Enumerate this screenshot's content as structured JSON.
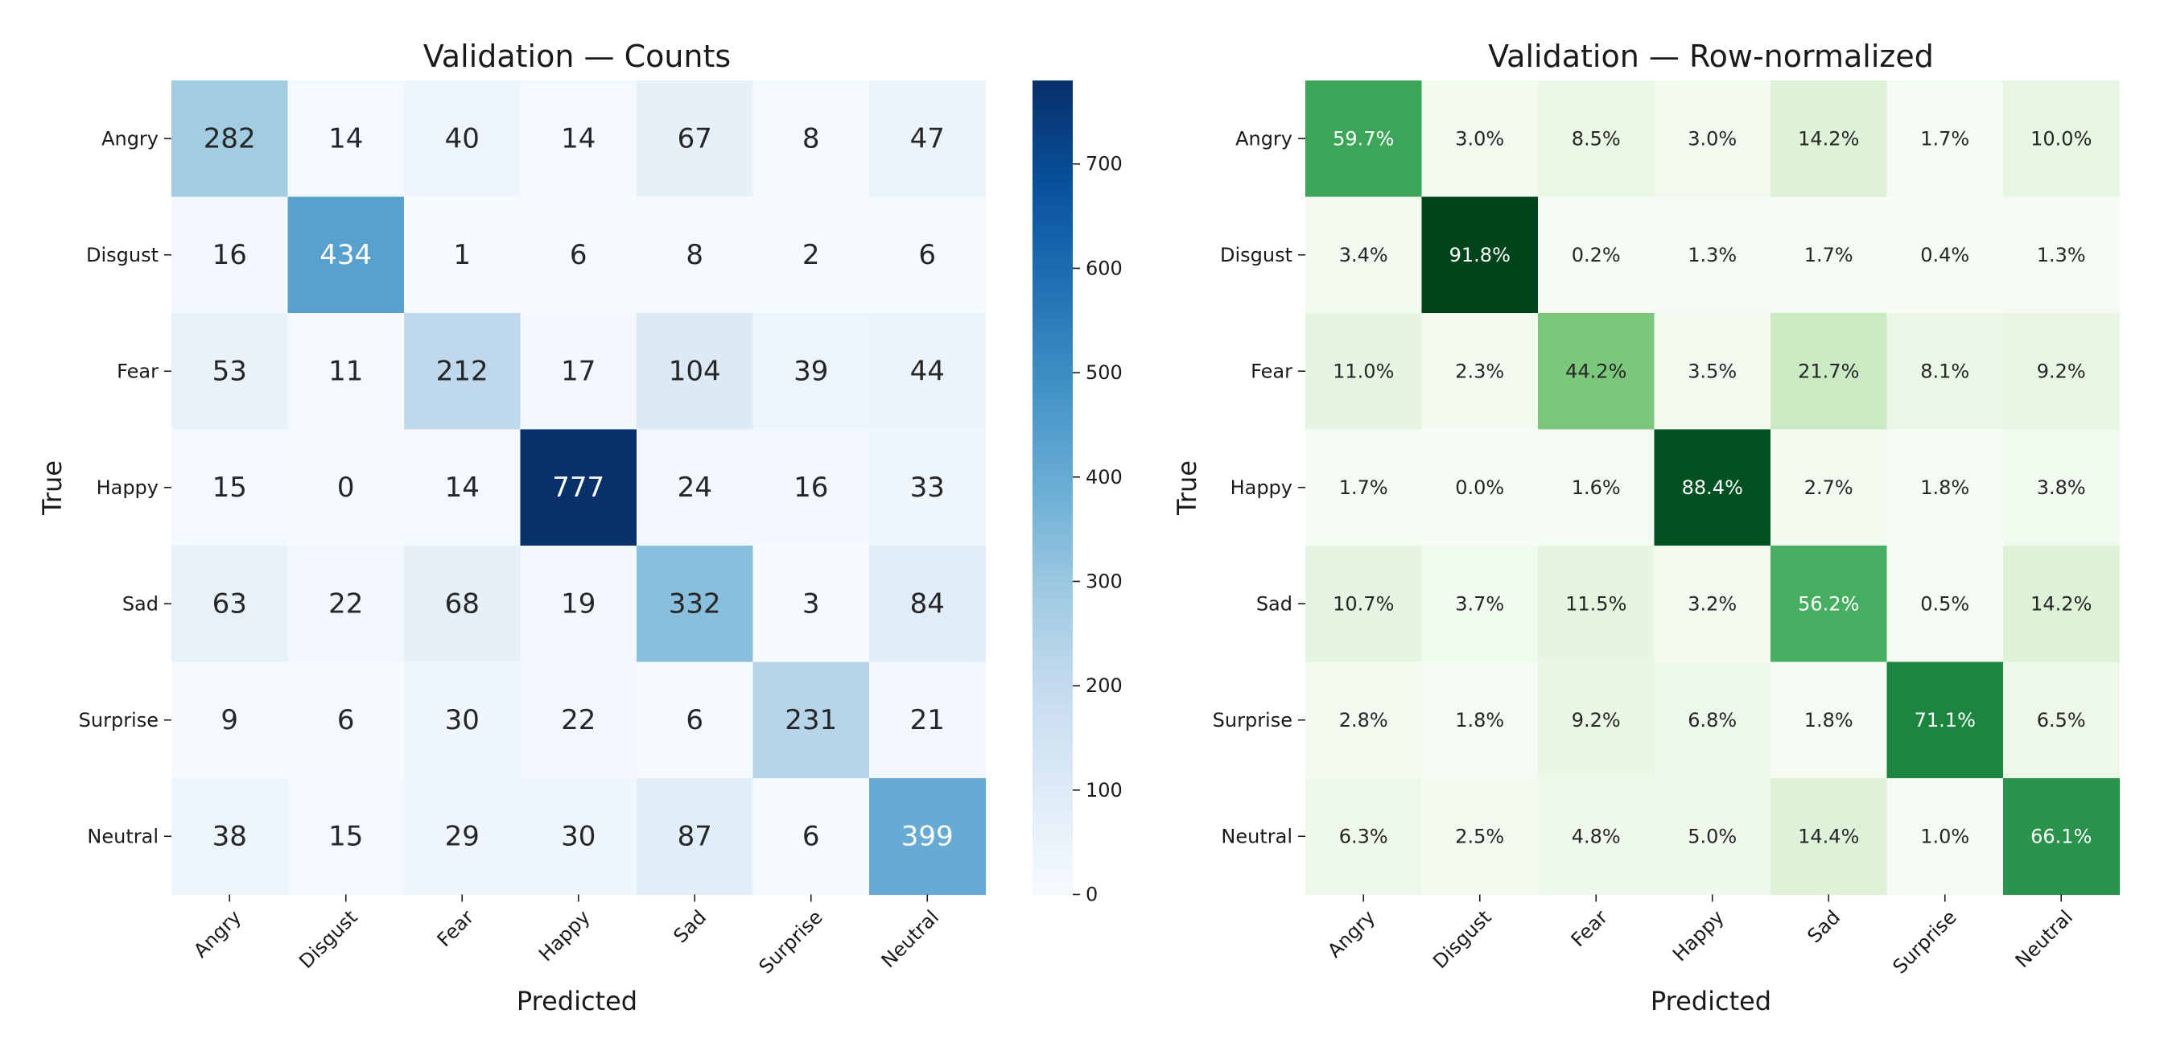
{
  "chart_data": [
    {
      "type": "heatmap",
      "title": "Validation — Counts",
      "xlabel": "Predicted",
      "ylabel": "True",
      "categories": [
        "Angry",
        "Disgust",
        "Fear",
        "Happy",
        "Sad",
        "Surprise",
        "Neutral"
      ],
      "rows": [
        "Angry",
        "Disgust",
        "Fear",
        "Happy",
        "Sad",
        "Surprise",
        "Neutral"
      ],
      "cells": [
        [
          "282",
          "14",
          "40",
          "14",
          "67",
          "8",
          "47"
        ],
        [
          "16",
          "434",
          "1",
          "6",
          "8",
          "2",
          "6"
        ],
        [
          "53",
          "11",
          "212",
          "17",
          "104",
          "39",
          "44"
        ],
        [
          "15",
          "0",
          "14",
          "777",
          "24",
          "16",
          "33"
        ],
        [
          "63",
          "22",
          "68",
          "19",
          "332",
          "3",
          "84"
        ],
        [
          "9",
          "6",
          "30",
          "22",
          "6",
          "231",
          "21"
        ],
        [
          "38",
          "15",
          "29",
          "30",
          "87",
          "6",
          "399"
        ]
      ],
      "values": [
        [
          282,
          14,
          40,
          14,
          67,
          8,
          47
        ],
        [
          16,
          434,
          1,
          6,
          8,
          2,
          6
        ],
        [
          53,
          11,
          212,
          17,
          104,
          39,
          44
        ],
        [
          15,
          0,
          14,
          777,
          24,
          16,
          33
        ],
        [
          63,
          22,
          68,
          19,
          332,
          3,
          84
        ],
        [
          9,
          6,
          30,
          22,
          6,
          231,
          21
        ],
        [
          38,
          15,
          29,
          30,
          87,
          6,
          399
        ]
      ],
      "colormap": "Blues",
      "vmin": 0,
      "vmax": 777,
      "colorbar": {
        "ticks": [
          "0",
          "100",
          "200",
          "300",
          "400",
          "500",
          "600",
          "700"
        ],
        "tick_values": [
          0,
          100,
          200,
          300,
          400,
          500,
          600,
          700
        ]
      }
    },
    {
      "type": "heatmap",
      "title": "Validation — Row-normalized",
      "xlabel": "Predicted",
      "ylabel": "True",
      "categories": [
        "Angry",
        "Disgust",
        "Fear",
        "Happy",
        "Sad",
        "Surprise",
        "Neutral"
      ],
      "rows": [
        "Angry",
        "Disgust",
        "Fear",
        "Happy",
        "Sad",
        "Surprise",
        "Neutral"
      ],
      "cells": [
        [
          "59.7%",
          "3.0%",
          "8.5%",
          "3.0%",
          "14.2%",
          "1.7%",
          "10.0%"
        ],
        [
          "3.4%",
          "91.8%",
          "0.2%",
          "1.3%",
          "1.7%",
          "0.4%",
          "1.3%"
        ],
        [
          "11.0%",
          "2.3%",
          "44.2%",
          "3.5%",
          "21.7%",
          "8.1%",
          "9.2%"
        ],
        [
          "1.7%",
          "0.0%",
          "1.6%",
          "88.4%",
          "2.7%",
          "1.8%",
          "3.8%"
        ],
        [
          "10.7%",
          "3.7%",
          "11.5%",
          "3.2%",
          "56.2%",
          "0.5%",
          "14.2%"
        ],
        [
          "2.8%",
          "1.8%",
          "9.2%",
          "6.8%",
          "1.8%",
          "71.1%",
          "6.5%"
        ],
        [
          "6.3%",
          "2.5%",
          "4.8%",
          "5.0%",
          "14.4%",
          "1.0%",
          "66.1%"
        ]
      ],
      "values": [
        [
          59.7,
          3.0,
          8.5,
          3.0,
          14.2,
          1.7,
          10.0
        ],
        [
          3.4,
          91.8,
          0.2,
          1.3,
          1.7,
          0.4,
          1.3
        ],
        [
          11.0,
          2.3,
          44.2,
          3.5,
          21.7,
          8.1,
          9.2
        ],
        [
          1.7,
          0.0,
          1.6,
          88.4,
          2.7,
          1.8,
          3.8
        ],
        [
          10.7,
          3.7,
          11.5,
          3.2,
          56.2,
          0.5,
          14.2
        ],
        [
          2.8,
          1.8,
          9.2,
          6.8,
          1.8,
          71.1,
          6.5
        ],
        [
          6.3,
          2.5,
          4.8,
          5.0,
          14.4,
          1.0,
          66.1
        ]
      ],
      "colormap": "Greens",
      "vmin": 0,
      "vmax": 91.8
    }
  ]
}
